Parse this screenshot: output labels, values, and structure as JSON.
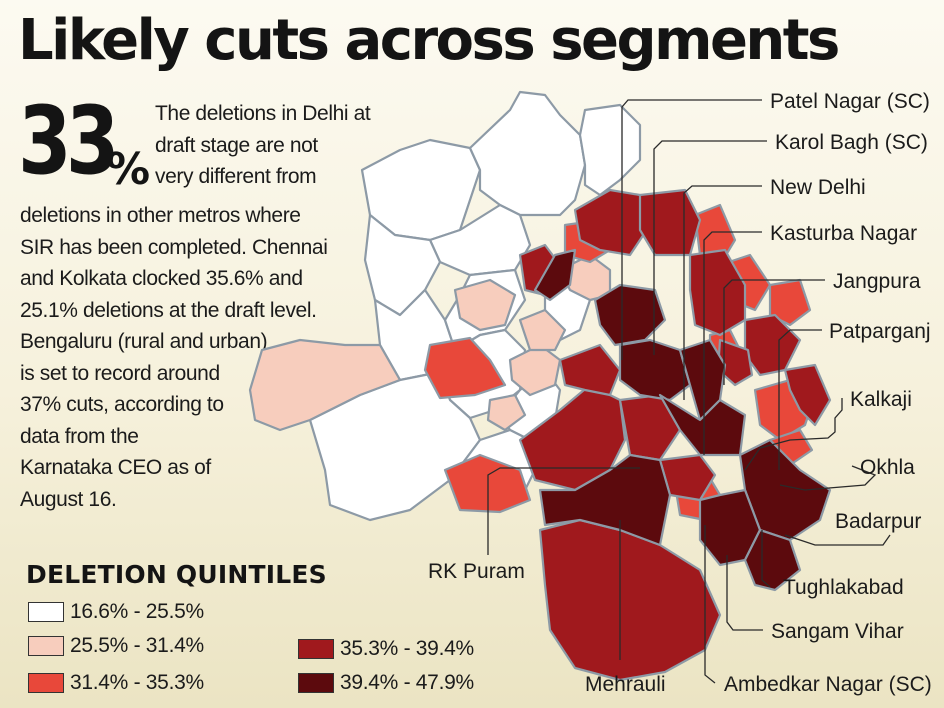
{
  "title": "Likely cuts across segments",
  "stat": {
    "value": "33",
    "unit": "%"
  },
  "body": {
    "right_lines": [
      "The deletions in Delhi at",
      "draft stage are not",
      "very different from"
    ],
    "left_lines": [
      "deletions in other metros where",
      "SIR has been completed. Chennai",
      "and Kolkata clocked 35.6% and",
      "25.1% deletions at the draft level.",
      "Bengaluru (rural and urban)",
      "is set to record around",
      "37% cuts, according to",
      "data from the",
      "Karnataka CEO as of",
      "August 16."
    ]
  },
  "legend": {
    "title": "DELETION QUINTILES",
    "items": [
      {
        "label": "16.6% - 25.5%",
        "color": "#ffffff"
      },
      {
        "label": "25.5% - 31.4%",
        "color": "#f7cdbd"
      },
      {
        "label": "31.4% - 35.3%",
        "color": "#e8483a"
      },
      {
        "label": "35.3% - 39.4%",
        "color": "#a0191d"
      },
      {
        "label": "39.4% - 47.9%",
        "color": "#5c0a0d"
      }
    ]
  },
  "constituencies": {
    "patel_nagar": "Patel Nagar (SC)",
    "karol_bagh": "Karol Bagh (SC)",
    "new_delhi": "New Delhi",
    "kasturba_nagar": "Kasturba Nagar",
    "jangpura": "Jangpura",
    "patparganj": "Patparganj",
    "kalkaji": "Kalkaji",
    "okhla": "Okhla",
    "badarpur": "Badarpur",
    "tughlakabad": "Tughlakabad",
    "sangam_vihar": "Sangam Vihar",
    "ambedkar_nagar": "Ambedkar Nagar (SC)",
    "mehrauli": "Mehrauli",
    "rk_puram": "RK Puram"
  }
}
